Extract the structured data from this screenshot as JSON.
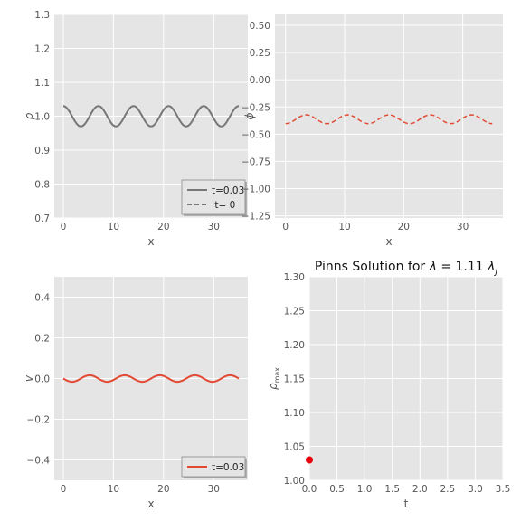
{
  "chart_data": [
    {
      "type": "line",
      "xlabel": "x",
      "ylabel": "ρ",
      "xlim": [
        -1.8,
        36.8
      ],
      "ylim": [
        0.7,
        1.3
      ],
      "xticks": [
        0,
        10,
        20,
        30
      ],
      "yticks": [
        0.7,
        0.8,
        0.9,
        1.0,
        1.1,
        1.2,
        1.3
      ],
      "ytick_labels": [
        "0.7",
        "0.8",
        "0.9",
        "1.0",
        "1.1",
        "1.2",
        "1.3"
      ],
      "grid": true,
      "legend": {
        "placement": "lower-right",
        "entries": [
          "t=0.03",
          " t= 0"
        ]
      },
      "series": [
        {
          "name": "t=0.03",
          "style": "solid",
          "color": "#777777",
          "kind": "cos",
          "mean": 1.0,
          "amp": 0.03,
          "wavelength": 7.0,
          "x_range": [
            0,
            35
          ]
        },
        {
          "name": " t= 0",
          "style": "dashed",
          "color": "#777777",
          "kind": "cos",
          "mean": 1.0,
          "amp": 0.03,
          "wavelength": 7.0,
          "x_range": [
            0,
            35
          ]
        }
      ]
    },
    {
      "type": "line",
      "xlabel": "x",
      "ylabel": "ϕ",
      "xlim": [
        -1.8,
        36.8
      ],
      "ylim": [
        -1.27,
        0.6
      ],
      "xticks": [
        0,
        10,
        20,
        30
      ],
      "yticks": [
        0.5,
        0.25,
        0.0,
        -0.25,
        -0.5,
        -0.75,
        -1.0,
        -1.25
      ],
      "ytick_labels": [
        "0.50",
        "0.25",
        "0.00",
        "−0.25",
        "−0.50",
        "−0.75",
        "−1.00",
        "−1.25"
      ],
      "grid": true,
      "series": [
        {
          "style": "dashed",
          "color": "#e24a33",
          "kind": "cos",
          "mean": -0.363,
          "amp": -0.04,
          "wavelength": 7.0,
          "x_range": [
            0,
            35
          ]
        }
      ]
    },
    {
      "type": "line",
      "xlabel": "x",
      "ylabel": "v",
      "xlim": [
        -1.8,
        36.8
      ],
      "ylim": [
        -0.5,
        0.5
      ],
      "xticks": [
        0,
        10,
        20,
        30
      ],
      "yticks": [
        0.4,
        0.2,
        0.0,
        -0.2,
        -0.4
      ],
      "ytick_labels": [
        "0.4",
        "0.2",
        "0.0",
        "−0.2",
        "−0.4"
      ],
      "grid": true,
      "legend": {
        "placement": "lower-right",
        "entries": [
          "t=0.03"
        ]
      },
      "series": [
        {
          "name": "t=0.03",
          "style": "solid",
          "color": "#e24a33",
          "kind": "sin",
          "mean": 0.0,
          "amp": -0.016,
          "wavelength": 7.0,
          "x_range": [
            0,
            35
          ]
        }
      ]
    },
    {
      "type": "scatter",
      "title": "Pinns Solution for λ = 1.11 λJ",
      "title_parts": [
        "Pinns Solution for ",
        "λ",
        " = 1.11 ",
        "λ",
        "J"
      ],
      "xlabel": "t",
      "ylabel": "ρmax",
      "ylabel_parts": [
        "ρ",
        "max"
      ],
      "xlim": [
        0.0,
        3.5
      ],
      "ylim": [
        1.0,
        1.3
      ],
      "xticks": [
        0.0,
        0.5,
        1.0,
        1.5,
        2.0,
        2.5,
        3.0,
        3.5
      ],
      "xtick_labels": [
        "0.0",
        "0.5",
        "1.0",
        "1.5",
        "2.0",
        "2.5",
        "3.0",
        "3.5"
      ],
      "yticks": [
        1.0,
        1.05,
        1.1,
        1.15,
        1.2,
        1.25,
        1.3
      ],
      "ytick_labels": [
        "1.00",
        "1.05",
        "1.10",
        "1.15",
        "1.20",
        "1.25",
        "1.30"
      ],
      "grid": true,
      "points": [
        {
          "x": 0.0,
          "y": 1.03,
          "color": "#e8000b"
        }
      ]
    }
  ]
}
